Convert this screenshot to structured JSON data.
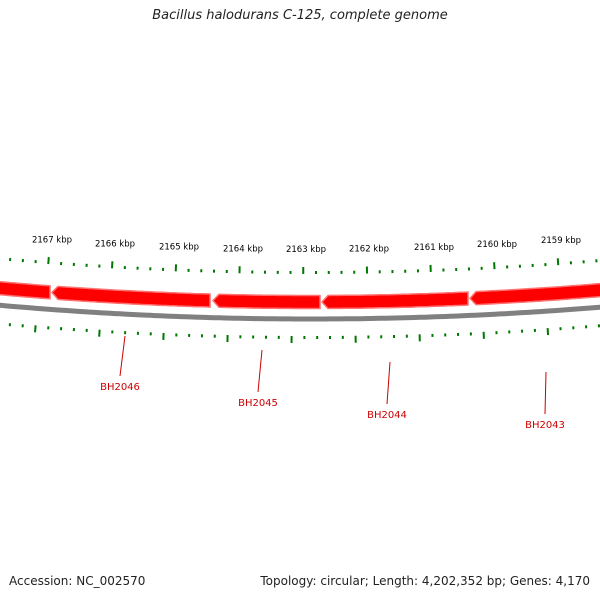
{
  "title": "Bacillus halodurans C-125, complete genome",
  "footer": {
    "accession": "Accession: NC_002570",
    "summary": "Topology: circular; Length: 4,202,352 bp; Genes: 4,170"
  },
  "colors": {
    "gene": "#ff0000",
    "gene_edge": "#ff7070",
    "backbone": "#808080",
    "ticks": "#007700",
    "gene_label": "#cc0000",
    "scale_label": "#000000"
  },
  "scale_labels": [
    "2167 kbp",
    "2166 kbp",
    "2165 kbp",
    "2164 kbp",
    "2163 kbp",
    "2162 kbp",
    "2161 kbp",
    "2160 kbp",
    "2159 kbp"
  ],
  "genes": [
    "BH2046",
    "BH2045",
    "BH2044",
    "BH2043"
  ]
}
